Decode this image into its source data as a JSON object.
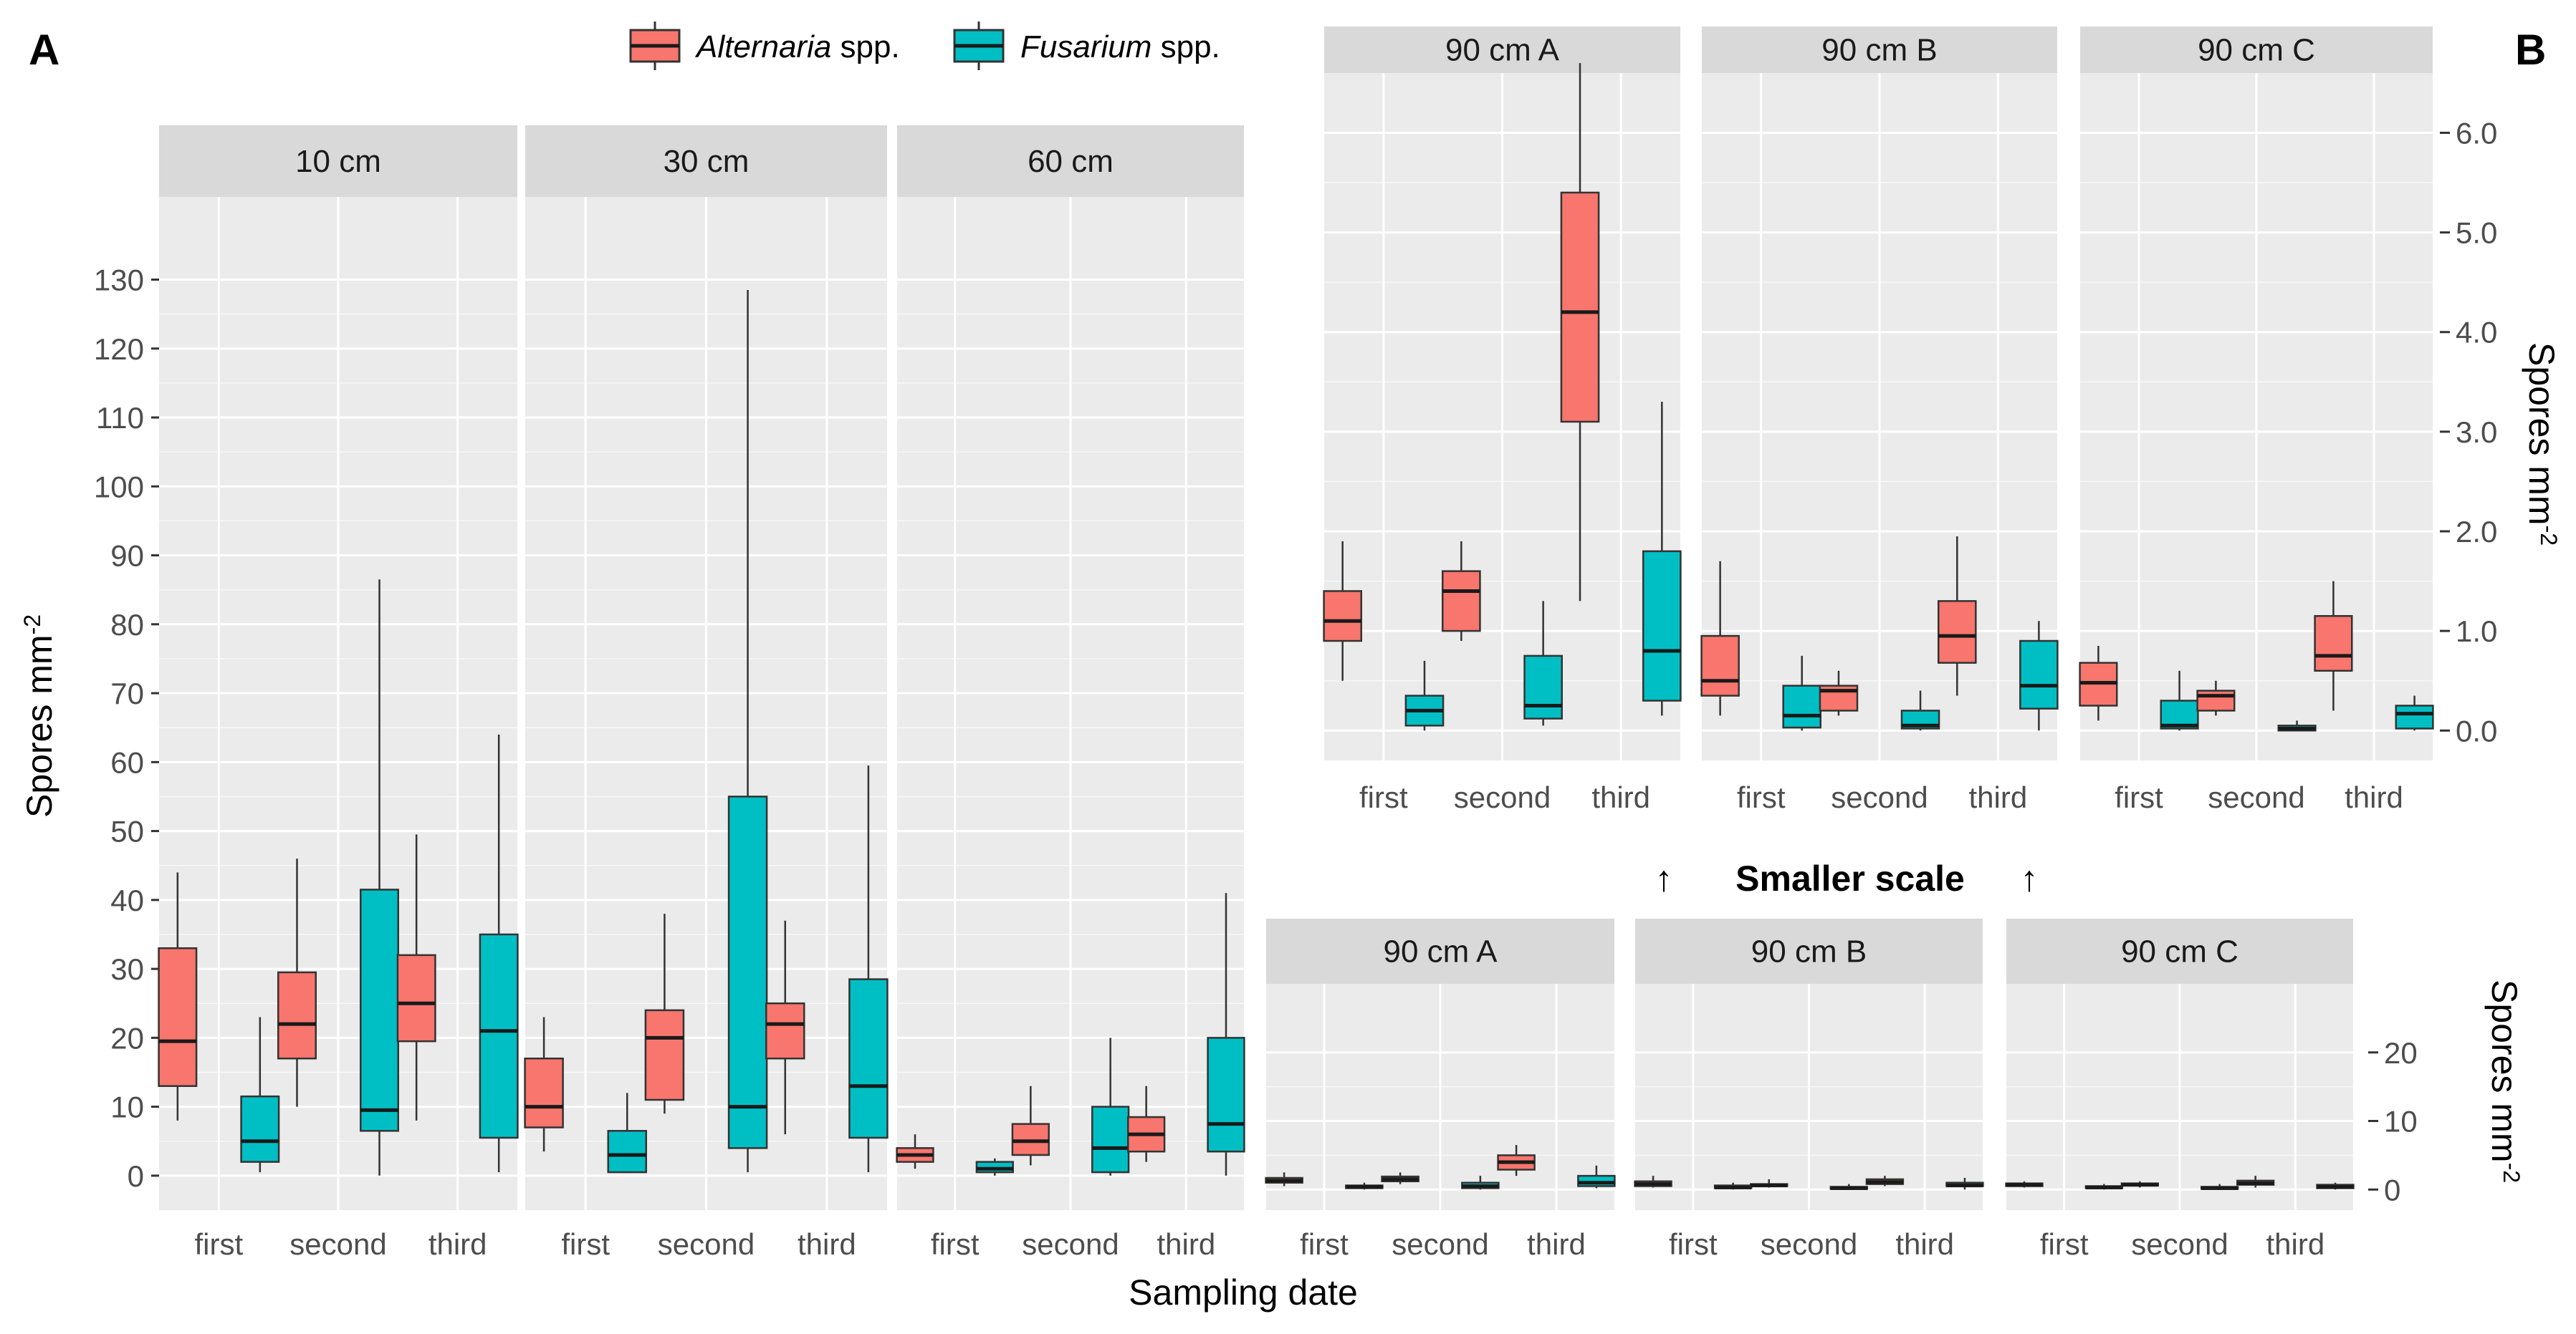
{
  "chart_data": {
    "type": "boxplot",
    "panel_labels": {
      "a": "A",
      "b": "B"
    },
    "legend": [
      {
        "italic": "Alternaria",
        "suffix": " spp.",
        "color": "#F8766D"
      },
      {
        "italic": "Fusarium",
        "suffix": " spp.",
        "color": "#00BFC4"
      }
    ],
    "categories": [
      "first",
      "second",
      "third"
    ],
    "xlabel": "Sampling date",
    "ylabel": {
      "base": "Spores mm",
      "sup": "-2"
    },
    "annotation": "Smaller scale",
    "arrow_glyph": "↑",
    "groups": [
      {
        "id": "A",
        "ylim": [
          -5,
          142
        ],
        "yticks": [
          0,
          10,
          20,
          30,
          40,
          50,
          60,
          70,
          80,
          90,
          100,
          110,
          120,
          130
        ],
        "ytick_labels": [
          "0",
          "10",
          "20",
          "30",
          "40",
          "50",
          "60",
          "70",
          "80",
          "90",
          "100",
          "110",
          "120",
          "130"
        ],
        "panels": [
          {
            "label": "10 cm",
            "boxes": [
              [
                [
                  8,
                  13,
                  19.5,
                  33,
                  44
                ],
                [
                  0.5,
                  2,
                  5,
                  11.5,
                  23
                ]
              ],
              [
                [
                  10,
                  17,
                  22,
                  29.5,
                  46
                ],
                [
                  0,
                  6.5,
                  9.5,
                  41.5,
                  86.5
                ]
              ],
              [
                [
                  8,
                  19.5,
                  25,
                  32,
                  49.5
                ],
                [
                  0.5,
                  5.5,
                  21,
                  35,
                  64
                ]
              ]
            ]
          },
          {
            "label": "30 cm",
            "boxes": [
              [
                [
                  3.5,
                  7,
                  10,
                  17,
                  23
                ],
                [
                  0.5,
                  0.5,
                  3,
                  6.5,
                  12
                ]
              ],
              [
                [
                  9,
                  11,
                  20,
                  24,
                  38
                ],
                [
                  0.5,
                  4,
                  10,
                  55,
                  128.5
                ]
              ],
              [
                [
                  6,
                  17,
                  22,
                  25,
                  37
                ],
                [
                  0.5,
                  5.5,
                  13,
                  28.5,
                  59.5
                ]
              ]
            ]
          },
          {
            "label": "60 cm",
            "boxes": [
              [
                [
                  1,
                  2,
                  3,
                  4,
                  6
                ],
                [
                  0,
                  0.5,
                  1,
                  2,
                  2.5
                ]
              ],
              [
                [
                  1.5,
                  3,
                  5,
                  7.5,
                  13
                ],
                [
                  0,
                  0.5,
                  4,
                  10,
                  20
                ]
              ],
              [
                [
                  2,
                  3.5,
                  6,
                  8.5,
                  13
                ],
                [
                  0,
                  3.5,
                  7.5,
                  20,
                  41
                ]
              ]
            ]
          }
        ]
      },
      {
        "id": "B-large",
        "ylim": [
          -3,
          30
        ],
        "yticks": [
          0,
          10,
          20
        ],
        "ytick_labels": [
          "0",
          "10",
          "20"
        ],
        "panels": [
          {
            "label": "90 cm A",
            "boxes": [
              [
                [
                  0.5,
                  1,
                  1.3,
                  1.7,
                  2.5
                ],
                [
                  0,
                  0.2,
                  0.4,
                  0.6,
                  1
                ]
              ],
              [
                [
                  0.8,
                  1.2,
                  1.5,
                  1.9,
                  2.5
                ],
                [
                  0,
                  0.2,
                  0.5,
                  1,
                  2
                ]
              ],
              [
                [
                  2,
                  2.9,
                  4,
                  5,
                  6.5
                ],
                [
                  0.2,
                  0.5,
                  1,
                  2,
                  3.5
                ]
              ]
            ]
          },
          {
            "label": "90 cm B",
            "boxes": [
              [
                [
                  0.3,
                  0.5,
                  0.8,
                  1.2,
                  2
                ],
                [
                  0,
                  0.2,
                  0.3,
                  0.6,
                  1
                ]
              ],
              [
                [
                  0.3,
                  0.5,
                  0.6,
                  0.8,
                  1.5
                ],
                [
                  0,
                  0.1,
                  0.2,
                  0.4,
                  0.8
                ]
              ],
              [
                [
                  0.5,
                  0.8,
                  1.1,
                  1.5,
                  2
                ],
                [
                  0,
                  0.5,
                  0.6,
                  1,
                  1.7
                ]
              ]
            ]
          },
          {
            "label": "90 cm C",
            "boxes": [
              [
                [
                  0.3,
                  0.5,
                  0.7,
                  0.9,
                  1.2
                ],
                [
                  0,
                  0.2,
                  0.3,
                  0.5,
                  0.8
                ]
              ],
              [
                [
                  0.3,
                  0.6,
                  0.7,
                  0.9,
                  1.2
                ],
                [
                  0,
                  0.1,
                  0.2,
                  0.4,
                  0.8
                ]
              ],
              [
                [
                  0.3,
                  0.7,
                  0.9,
                  1.3,
                  2
                ],
                [
                  0,
                  0.2,
                  0.4,
                  0.7,
                  1
                ]
              ]
            ]
          }
        ]
      },
      {
        "id": "B-small",
        "ylim": [
          -0.3,
          6.6
        ],
        "yticks": [
          0,
          1,
          2,
          3,
          4,
          5,
          6
        ],
        "ytick_labels": [
          "0.0",
          "1.0",
          "2.0",
          "3.0",
          "4.0",
          "5.0",
          "6.0"
        ],
        "panels": [
          {
            "label": "90 cm A",
            "boxes": [
              [
                [
                  0.5,
                  0.9,
                  1.1,
                  1.4,
                  1.9
                ],
                [
                  0,
                  0.05,
                  0.2,
                  0.35,
                  0.7
                ]
              ],
              [
                [
                  0.9,
                  1.0,
                  1.4,
                  1.6,
                  1.9
                ],
                [
                  0.05,
                  0.12,
                  0.25,
                  0.75,
                  1.3
                ]
              ],
              [
                [
                  1.3,
                  3.1,
                  4.2,
                  5.4,
                  6.7
                ],
                [
                  0.15,
                  0.3,
                  0.8,
                  1.8,
                  3.3
                ]
              ]
            ]
          },
          {
            "label": "90 cm B",
            "boxes": [
              [
                [
                  0.15,
                  0.35,
                  0.5,
                  0.95,
                  1.7
                ],
                [
                  0,
                  0.03,
                  0.15,
                  0.45,
                  0.75
                ]
              ],
              [
                [
                  0.15,
                  0.2,
                  0.4,
                  0.45,
                  0.6
                ],
                [
                  0,
                  0.02,
                  0.05,
                  0.2,
                  0.4
                ]
              ],
              [
                [
                  0.35,
                  0.68,
                  0.95,
                  1.3,
                  1.95
                ],
                [
                  0,
                  0.22,
                  0.45,
                  0.9,
                  1.1
                ]
              ]
            ]
          },
          {
            "label": "90 cm C",
            "boxes": [
              [
                [
                  0.1,
                  0.25,
                  0.48,
                  0.68,
                  0.85
                ],
                [
                  0,
                  0.02,
                  0.05,
                  0.3,
                  0.6
                ]
              ],
              [
                [
                  0.15,
                  0.2,
                  0.35,
                  0.4,
                  0.5
                ],
                [
                  0,
                  0,
                  0.02,
                  0.05,
                  0.1
                ]
              ],
              [
                [
                  0.2,
                  0.6,
                  0.75,
                  1.15,
                  1.5
                ],
                [
                  0,
                  0.02,
                  0.17,
                  0.25,
                  0.35
                ]
              ]
            ]
          }
        ]
      }
    ]
  }
}
